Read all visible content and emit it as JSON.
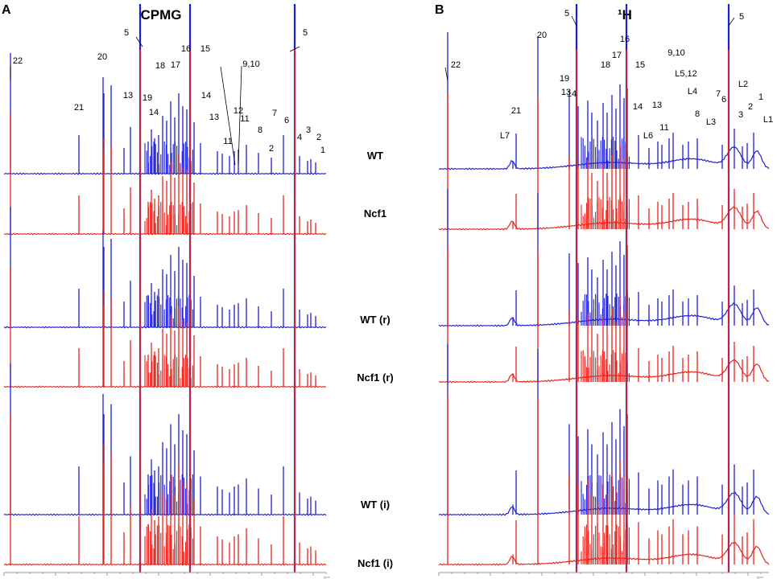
{
  "figure": {
    "colors": {
      "wt": "#1f1fd6",
      "ncf1": "#e8231c",
      "axis": "#9a9a9a",
      "text": "#000000"
    }
  },
  "chart_data": [
    {
      "type": "line",
      "panel_letter": "A",
      "title": "CPMG",
      "xlabel": "ppm",
      "x_direction": "descending",
      "xlim": [
        9.5,
        0.5
      ],
      "series": [
        {
          "name": "WT",
          "color": "blue"
        },
        {
          "name": "Ncf1",
          "color": "red"
        },
        {
          "name": "WT (r)",
          "color": "blue"
        },
        {
          "name": "Ncf1 (r)",
          "color": "red"
        },
        {
          "name": "WT  (i)",
          "color": "blue"
        },
        {
          "name": "Ncf1 (i)",
          "color": "red"
        }
      ],
      "peak_labels": [
        "22",
        "21",
        "20",
        "5",
        "13",
        "19",
        "14",
        "18",
        "17",
        "16",
        "15",
        "14",
        "13",
        "11",
        "12",
        "9,10",
        "11",
        "8",
        "2",
        "7",
        "6",
        "5",
        "4",
        "3",
        "2",
        "1"
      ]
    },
    {
      "type": "line",
      "panel_letter": "B",
      "title": "¹H",
      "xlabel": "ppm",
      "x_direction": "descending",
      "xlim": [
        9.5,
        0.5
      ],
      "series": [
        {
          "name": "WT",
          "color": "blue"
        },
        {
          "name": "Ncf1",
          "color": "red"
        },
        {
          "name": "WT (r)",
          "color": "blue"
        },
        {
          "name": "Ncf1 (r)",
          "color": "red"
        },
        {
          "name": "WT  (i)",
          "color": "blue"
        },
        {
          "name": "Ncf1 (i)",
          "color": "red"
        }
      ],
      "peak_labels": [
        "22",
        "L7",
        "21",
        "20",
        "5",
        "13",
        "19",
        "14",
        "18",
        "17",
        "16",
        "15",
        "14",
        "L6",
        "13",
        "11",
        "9,10",
        "L5,12",
        "L4",
        "8",
        "L3",
        "7",
        "6",
        "5",
        "L2",
        "3",
        "2",
        "1",
        "L1"
      ]
    }
  ]
}
